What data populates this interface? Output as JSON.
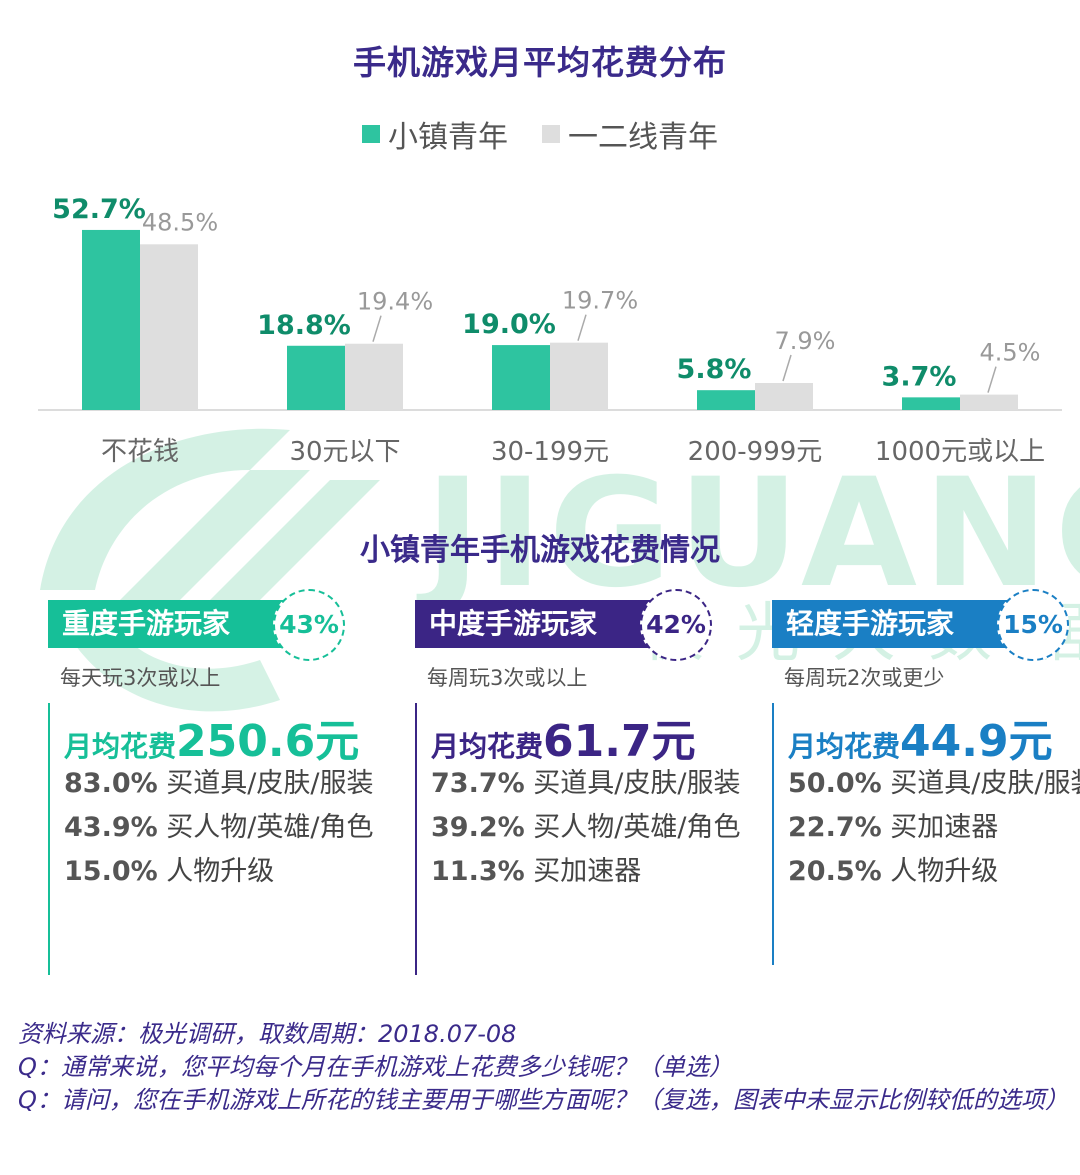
{
  "title": "手机游戏月平均花费分布",
  "legend": {
    "series_a": "小镇青年",
    "series_b": "一二线青年"
  },
  "colors": {
    "teal": "#2ec4a0",
    "gray": "#dedede",
    "title_purple": "#3a2a8a",
    "label_green": "#0f8c6a",
    "heavy": "#16bf98",
    "medium": "#3b2585",
    "light": "#1a7fc4"
  },
  "chart_data": {
    "type": "bar",
    "title": "手机游戏月平均花费分布",
    "categories": [
      "不花钱",
      "30元以下",
      "30-199元",
      "200-999元",
      "1000元或以上"
    ],
    "series": [
      {
        "name": "小镇青年",
        "values": [
          52.7,
          18.8,
          19.0,
          5.8,
          3.7
        ]
      },
      {
        "name": "一二线青年",
        "values": [
          48.5,
          19.4,
          19.7,
          7.9,
          4.5
        ]
      }
    ],
    "value_labels": {
      "小镇青年": [
        "52.7%",
        "18.8%",
        "19.0%",
        "5.8%",
        "3.7%"
      ],
      "一二线青年": [
        "48.5%",
        "19.4%",
        "19.7%",
        "7.9%",
        "4.5%"
      ]
    },
    "ylim": [
      0,
      60
    ],
    "legend_position": "top",
    "grid": false
  },
  "subtitle": "小镇青年手机游戏花费情况",
  "cards": [
    {
      "tag": "重度手游玩家",
      "share": "43%",
      "desc": "每天玩3次或以上",
      "price_label": "月均花费",
      "price_value": "250.6元",
      "items": [
        {
          "pct": "83.0%",
          "text": "买道具/皮肤/服装"
        },
        {
          "pct": "43.9%",
          "text": "买人物/英雄/角色"
        },
        {
          "pct": "15.0%",
          "text": "人物升级"
        }
      ]
    },
    {
      "tag": "中度手游玩家",
      "share": "42%",
      "desc": "每周玩3次或以上",
      "price_label": "月均花费",
      "price_value": "61.7元",
      "items": [
        {
          "pct": "73.7%",
          "text": "买道具/皮肤/服装"
        },
        {
          "pct": "39.2%",
          "text": "买人物/英雄/角色"
        },
        {
          "pct": "11.3%",
          "text": "买加速器"
        }
      ]
    },
    {
      "tag": "轻度手游玩家",
      "share": "15%",
      "desc": "每周玩2次或更少",
      "price_label": "月均花费",
      "price_value": "44.9元",
      "items": [
        {
          "pct": "50.0%",
          "text": "买道具/皮肤/服装"
        },
        {
          "pct": "22.7%",
          "text": "买加速器"
        },
        {
          "pct": "20.5%",
          "text": "人物升级"
        }
      ]
    }
  ],
  "footer": {
    "source": "资料来源：极光调研，取数周期：2018.07-08",
    "q1": "Q：通常来说，您平均每个月在手机游戏上花费多少钱呢？（单选）",
    "q2": "Q：请问，您在手机游戏上所花的钱主要用于哪些方面呢？（复选，图表中未显示比例较低的选项）"
  },
  "watermark": {
    "text_en": "JIGUANG",
    "text_cn": "极光大数据"
  }
}
